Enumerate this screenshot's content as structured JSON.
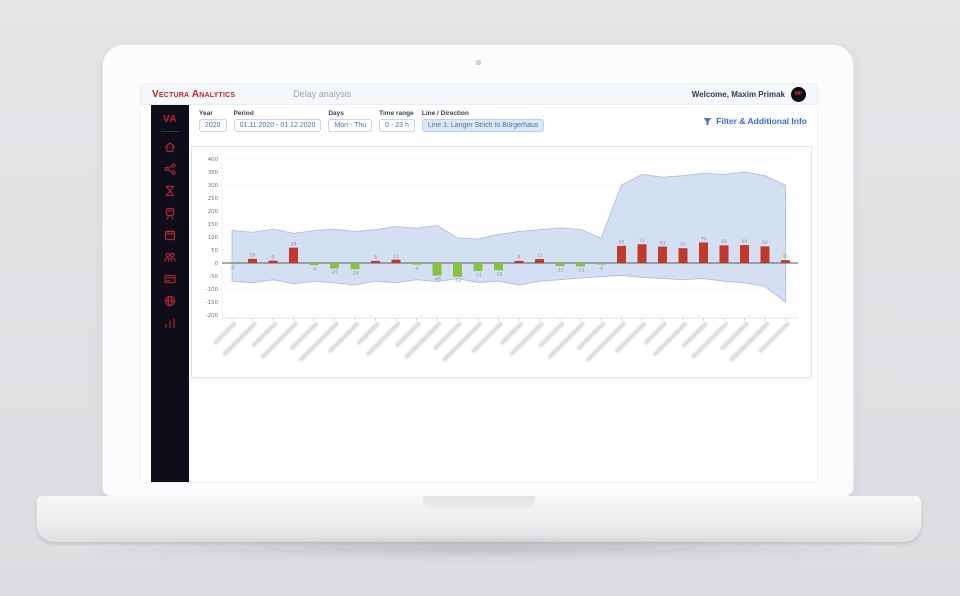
{
  "app": {
    "brand": "Vectura Analytics",
    "page_title": "Delay analysis",
    "welcome": "Welcome, Maxim Primak",
    "avatar_initials": "MP"
  },
  "sidebar": {
    "logo": "VA",
    "items": [
      {
        "name": "home"
      },
      {
        "name": "share"
      },
      {
        "name": "hourglass"
      },
      {
        "name": "train"
      },
      {
        "name": "calendar"
      },
      {
        "name": "passengers"
      },
      {
        "name": "card"
      },
      {
        "name": "globe"
      },
      {
        "name": "stats"
      }
    ]
  },
  "filters": {
    "year": {
      "label": "Year",
      "value": "2020"
    },
    "period": {
      "label": "Period",
      "value": "01.11.2020 - 01.12.2020"
    },
    "days": {
      "label": "Days",
      "value": "Mon - Thu"
    },
    "time_range": {
      "label": "Time range",
      "value": "0 - 23 h"
    },
    "line": {
      "label": "Line / Direction",
      "value": "Line 1: Langer Strich to Bürgerhaus"
    },
    "filter_link": "Filter & Additional Info"
  },
  "chart_data": {
    "type": "bar",
    "title": "",
    "ylim": [
      -200,
      400
    ],
    "y_ticks": [
      400,
      350,
      300,
      250,
      200,
      150,
      100,
      50,
      0,
      -50,
      -100,
      -150,
      -200
    ],
    "x_tick_count": 28,
    "x_labels": "rotated station names (illegible at this resolution)",
    "bar_values": [
      -3,
      16,
      9,
      59,
      -8,
      -21,
      -24,
      8,
      13,
      -6,
      -48,
      -53,
      -31,
      -28,
      8,
      15,
      -12,
      -13,
      -6,
      66,
      72,
      63,
      57,
      79,
      68,
      69,
      64,
      11
    ],
    "band_max": [
      125,
      118,
      130,
      114,
      124,
      130,
      121,
      128,
      140,
      134,
      144,
      96,
      92,
      110,
      121,
      128,
      135,
      129,
      95,
      300,
      341,
      330,
      336,
      345,
      340,
      350,
      336,
      299
    ],
    "band_min": [
      -70,
      -76,
      -64,
      -80,
      -70,
      -76,
      -85,
      -70,
      -76,
      -64,
      -72,
      -60,
      -75,
      -70,
      -85,
      -70,
      -64,
      -58,
      -52,
      -48,
      -55,
      -60,
      -64,
      -60,
      -70,
      -76,
      -90,
      -150
    ],
    "bar_color_positive": "#c0392b",
    "bar_color_negative": "#85c441",
    "band_fill": "#c7d4ee",
    "band_stroke": "#a6badf",
    "legend": "band = min/max envelope, bars = average delay per stop"
  },
  "colors": {
    "brand_red": "#c2232d",
    "sidebar_bg": "#0e0e1b",
    "accent_blue": "#3a6bd8",
    "chip_text": "#4a6fa8"
  }
}
